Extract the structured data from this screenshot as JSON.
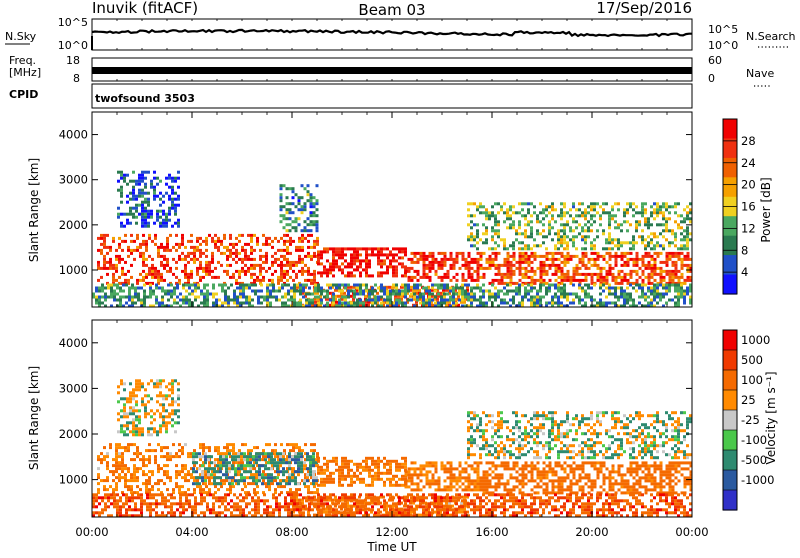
{
  "header": {
    "station": "Inuvik (fitACF)",
    "beam": "Beam 03",
    "date": "17/Sep/2016"
  },
  "panels": {
    "nsky": {
      "left_label": "N.Sky",
      "left_top": "10^5",
      "left_bottom": "10^0",
      "right_top": "10^5",
      "right_bottom": "10^0",
      "right_label": "N.Search"
    },
    "freq": {
      "left_label_1": "Freq.",
      "left_label_2": "[MHz]",
      "left_top": "18",
      "left_bottom": "8",
      "right_top": "60",
      "right_bottom": "0",
      "right_label": "Nave"
    },
    "cpid": {
      "label": "CPID",
      "program": "twofsound 3503"
    }
  },
  "colors": {
    "power_scale": [
      "#1010ff",
      "#2050c8",
      "#2a7a50",
      "#4aa860",
      "#f0d020",
      "#f5a000",
      "#f06000",
      "#f03010",
      "#f00000"
    ],
    "velocity_scale": [
      "#3030c8",
      "#2b5aa0",
      "#2e8a70",
      "#4bc84b",
      "#c8c8c8",
      "#ff8a00",
      "#f56a00",
      "#f03a00",
      "#f00000"
    ]
  },
  "chart_data": [
    {
      "type": "heatmap",
      "title": "",
      "quantity": "Power",
      "xlabel": "",
      "ylabel": "Slant Range [km]",
      "x_ticks": [
        "00:00",
        "04:00",
        "08:00",
        "12:00",
        "16:00",
        "20:00",
        "00:00"
      ],
      "xlim_hours": [
        0,
        24
      ],
      "y_ticks": [
        1000,
        2000,
        3000,
        4000
      ],
      "ylim_km": [
        180,
        4500
      ],
      "colorbar": {
        "label": "Power [dB]",
        "ticks": [
          4,
          8,
          12,
          16,
          20,
          24,
          28
        ],
        "range": [
          0,
          32
        ]
      },
      "regions": [
        {
          "t0": 0.2,
          "t1": 9.0,
          "r0": 700,
          "r1": 1800,
          "level": 26
        },
        {
          "t0": 9.0,
          "t1": 12.5,
          "r0": 850,
          "r1": 1500,
          "level": 29
        },
        {
          "t0": 12.5,
          "t1": 15.5,
          "r0": 800,
          "r1": 1400,
          "level": 27
        },
        {
          "t0": 15.5,
          "t1": 24.0,
          "r0": 700,
          "r1": 1400,
          "level": 25
        },
        {
          "t0": 8.0,
          "t1": 15.0,
          "r0": 250,
          "r1": 650,
          "level": 24
        },
        {
          "t0": 15.0,
          "t1": 24.0,
          "r0": 1500,
          "r1": 2500,
          "level": 13
        },
        {
          "t0": 1.0,
          "t1": 3.5,
          "r0": 2000,
          "r1": 3200,
          "level": 6
        },
        {
          "t0": 7.5,
          "t1": 9.0,
          "r0": 1900,
          "r1": 2900,
          "level": 9
        },
        {
          "t0": 0.0,
          "t1": 24.0,
          "r0": 200,
          "r1": 700,
          "level": 10
        }
      ]
    },
    {
      "type": "heatmap",
      "title": "",
      "quantity": "Velocity",
      "xlabel": "Time UT",
      "ylabel": "Slant Range [km]",
      "x_ticks": [
        "00:00",
        "04:00",
        "08:00",
        "12:00",
        "16:00",
        "20:00",
        "00:00"
      ],
      "xlim_hours": [
        0,
        24
      ],
      "y_ticks": [
        1000,
        2000,
        3000,
        4000
      ],
      "ylim_km": [
        180,
        4500
      ],
      "colorbar": {
        "label": "Velocity [m s⁻¹]",
        "ticks": [
          1000,
          500,
          100,
          25,
          -25,
          -100,
          -500,
          -1000
        ]
      },
      "regions": [
        {
          "t0": 0.2,
          "t1": 9.0,
          "r0": 700,
          "r1": 1800,
          "level": -300
        },
        {
          "t0": 4.0,
          "t1": 9.0,
          "r0": 900,
          "r1": 1600,
          "level": 150
        },
        {
          "t0": 9.0,
          "t1": 12.5,
          "r0": 850,
          "r1": 1500,
          "level": -400
        },
        {
          "t0": 12.5,
          "t1": 15.5,
          "r0": 800,
          "r1": 1400,
          "level": -350
        },
        {
          "t0": 15.5,
          "t1": 24.0,
          "r0": 700,
          "r1": 1400,
          "level": -500
        },
        {
          "t0": 8.0,
          "t1": 15.0,
          "r0": 250,
          "r1": 650,
          "level": -300
        },
        {
          "t0": 15.0,
          "t1": 24.0,
          "r0": 1500,
          "r1": 2500,
          "level": 0
        },
        {
          "t0": 1.0,
          "t1": 3.5,
          "r0": 2000,
          "r1": 3200,
          "level": -60
        },
        {
          "t0": 0.0,
          "t1": 24.0,
          "r0": 200,
          "r1": 700,
          "level": -700
        }
      ]
    }
  ]
}
